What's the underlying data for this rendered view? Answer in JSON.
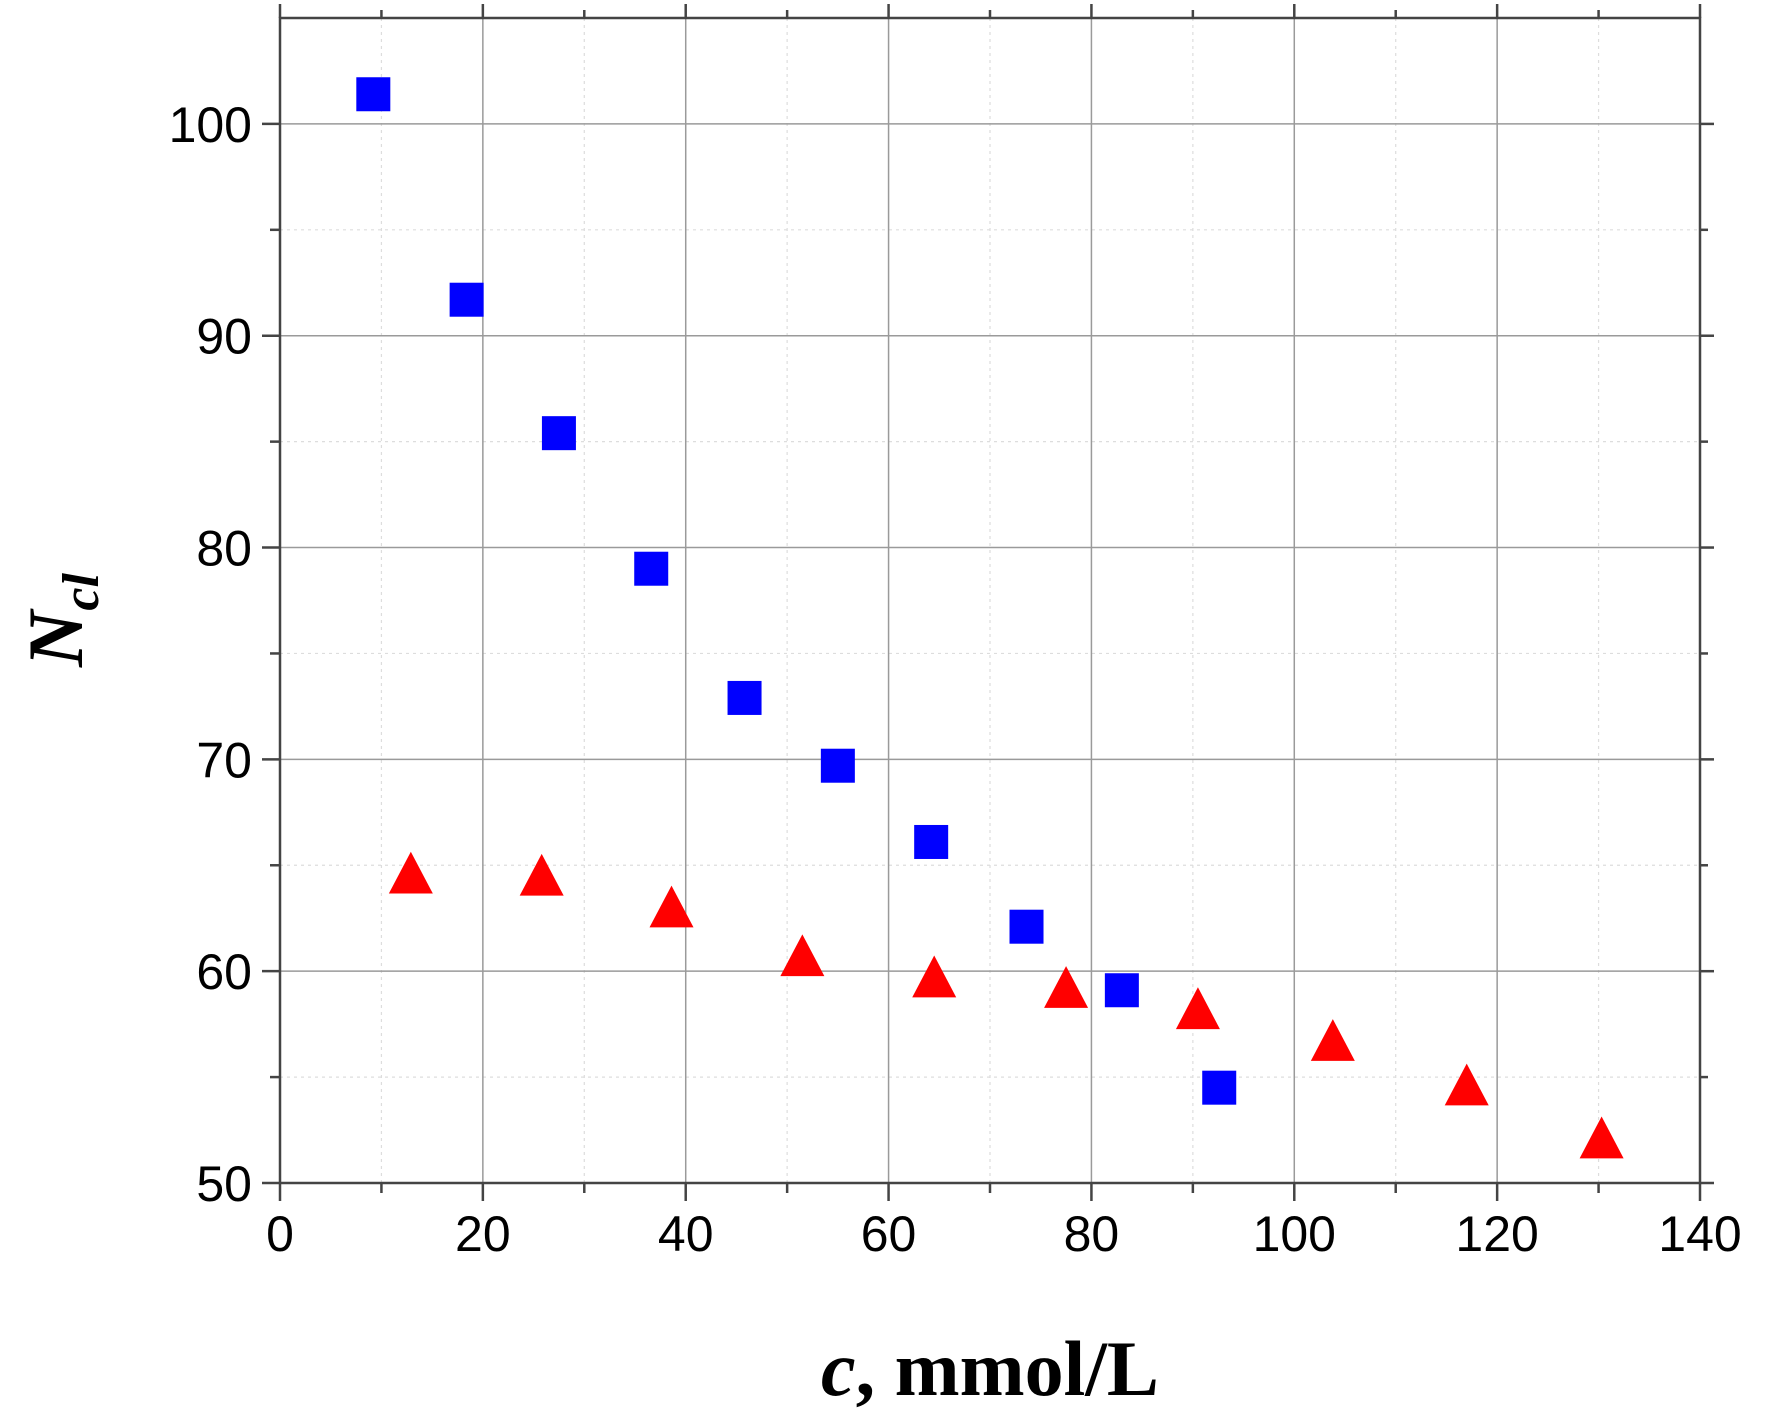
{
  "chart_data": {
    "type": "scatter",
    "title": "",
    "xlabel": {
      "var": "c",
      "unit": ", mmol/L"
    },
    "ylabel": {
      "main": "N",
      "sub": "cl"
    },
    "xlim": [
      0,
      140
    ],
    "ylim": [
      50,
      105
    ],
    "x_major_ticks": [
      0,
      20,
      40,
      60,
      80,
      100,
      120,
      140
    ],
    "y_major_ticks": [
      50,
      60,
      70,
      80,
      90,
      100
    ],
    "x_tick_labels": [
      "0",
      "20",
      "40",
      "60",
      "80",
      "100",
      "120",
      "140"
    ],
    "y_tick_labels": [
      "50",
      "60",
      "70",
      "80",
      "90",
      "100"
    ],
    "x_minor_step": 10,
    "y_minor_step": 5,
    "grid": true,
    "series": [
      {
        "name": "squares",
        "marker": "square",
        "color": "#0000FF",
        "x": [
          9.2,
          18.4,
          27.5,
          36.6,
          45.8,
          55.0,
          64.2,
          73.6,
          83.0,
          92.6
        ],
        "y": [
          101.4,
          91.7,
          85.4,
          79.0,
          72.9,
          69.7,
          66.1,
          62.1,
          59.1,
          54.5
        ]
      },
      {
        "name": "triangles",
        "marker": "triangle",
        "color": "#FF0000",
        "x": [
          12.9,
          25.8,
          38.6,
          51.5,
          64.5,
          77.5,
          90.5,
          103.8,
          117.0,
          130.3
        ],
        "y": [
          64.6,
          64.5,
          63.0,
          60.7,
          59.7,
          59.2,
          58.2,
          56.7,
          54.6,
          52.1
        ]
      }
    ]
  }
}
